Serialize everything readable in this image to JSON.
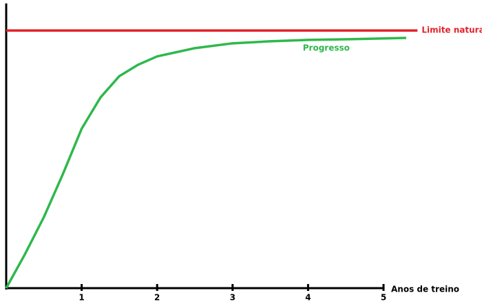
{
  "chart_data": {
    "type": "line",
    "x": [
      0,
      0.25,
      0.5,
      0.75,
      1,
      1.25,
      1.5,
      1.75,
      2,
      2.5,
      3,
      3.5,
      4,
      4.5,
      5,
      5.3,
      5.45
    ],
    "series": [
      {
        "name": "Limite natural",
        "color": "#e2232a",
        "values": [
          90.5,
          90.5,
          90.5,
          90.5,
          90.5,
          90.5,
          90.5,
          90.5,
          90.5,
          90.5,
          90.5,
          90.5,
          90.5,
          90.5,
          90.5,
          90.5,
          90.5
        ]
      },
      {
        "name": "Progresso",
        "color": "#2eb84c",
        "values": [
          0,
          12,
          25,
          40,
          56,
          67,
          74.5,
          78.5,
          81.4,
          84.3,
          86,
          86.7,
          87.2,
          87.4,
          87.7,
          87.9,
          null
        ]
      }
    ],
    "xlabel": "Anos de treino",
    "xlim": [
      0,
      5
    ],
    "xticks": [
      1,
      2,
      3,
      4,
      5
    ],
    "ylim": [
      0,
      100
    ]
  }
}
